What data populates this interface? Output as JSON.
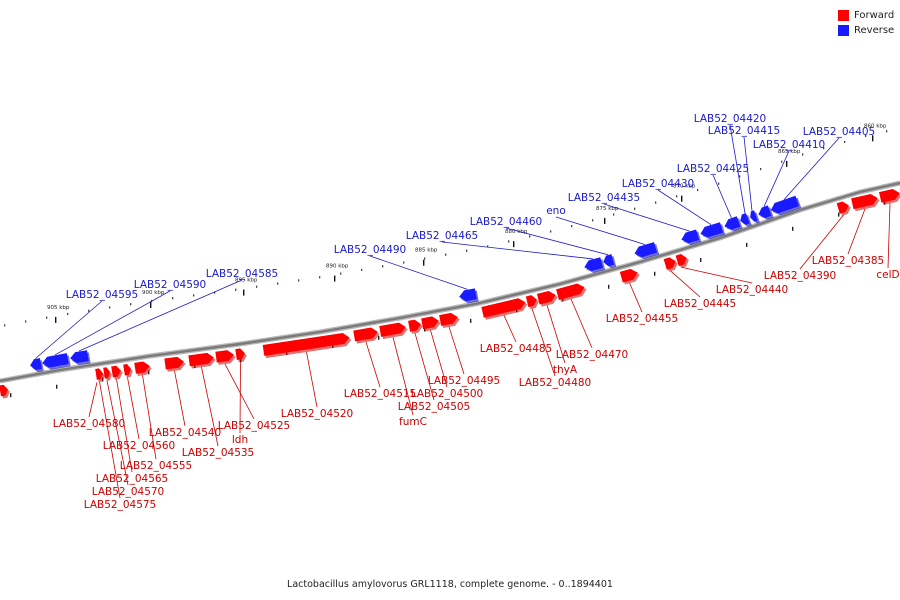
{
  "legend": {
    "forward_label": "Forward",
    "reverse_label": "Reverse",
    "forward_color": "#ff0000",
    "reverse_color": "#1a1aff"
  },
  "caption": "Lactobacillus amylovorus GRL1118, complete genome. - 0..1894401",
  "ruler": {
    "tick_labels": [
      "860 kbp",
      "865 kbp",
      "870 kbp",
      "875 kbp",
      "880 kbp",
      "885 kbp",
      "890 kbp",
      "895 kbp",
      "900 kbp",
      "905 kbp"
    ]
  },
  "genes": {
    "forward": [
      "celD",
      "LAB52_04385",
      "LAB52_04390",
      "LAB52_04440",
      "LAB52_04445",
      "LAB52_04455",
      "LAB52_04470",
      "thyA",
      "LAB52_04480",
      "LAB52_04485",
      "LAB52_04495",
      "LAB52_04500",
      "LAB52_04505",
      "fumC",
      "LAB52_04515",
      "LAB52_04520",
      "ldh",
      "LAB52_04525",
      "LAB52_04535",
      "LAB52_04540",
      "LAB52_04555",
      "LAB52_04560",
      "LAB52_04565",
      "LAB52_04570",
      "LAB52_04575",
      "LAB52_04580"
    ],
    "reverse": [
      "LAB52_04405",
      "LAB52_04410",
      "LAB52_04415",
      "LAB52_04420",
      "LAB52_04425",
      "LAB52_04430",
      "LAB52_04435",
      "eno",
      "LAB52_04460",
      "LAB52_04465",
      "LAB52_04490",
      "LAB52_04585",
      "LAB52_04590",
      "LAB52_04595"
    ]
  }
}
